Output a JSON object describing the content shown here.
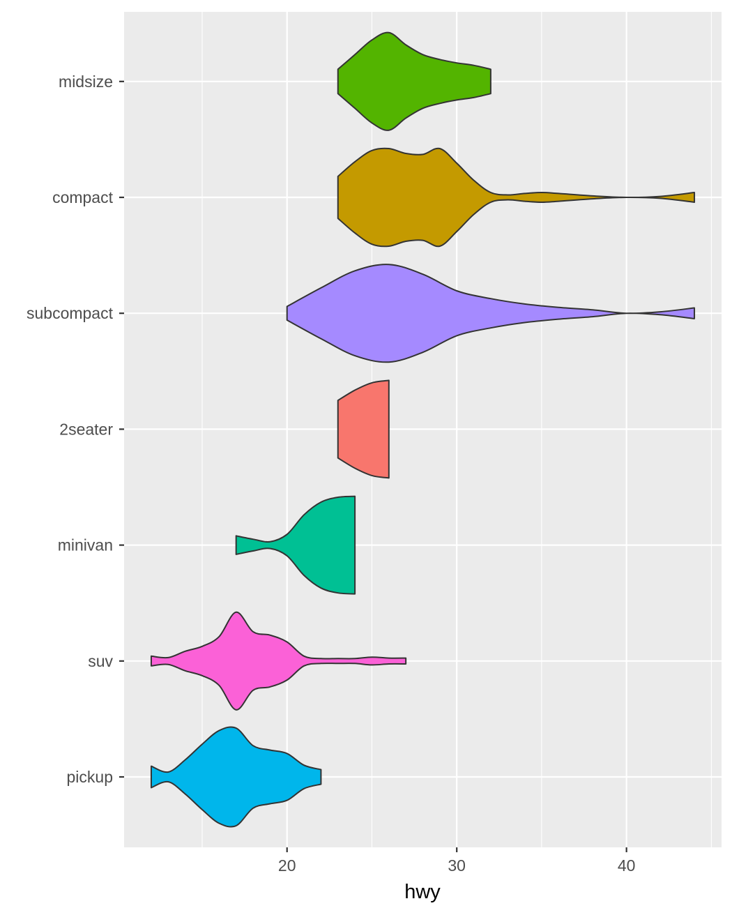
{
  "chart_data": {
    "type": "violin",
    "orientation": "horizontal",
    "title": "",
    "xlabel": "hwy",
    "ylabel": "",
    "xlim": [
      10.4,
      45.6
    ],
    "x_ticks": [
      20,
      30,
      40
    ],
    "x_minor_ticks": [
      15,
      25,
      35,
      45
    ],
    "grid": true,
    "legend": "none",
    "panel_background": "#ebebeb",
    "grid_color": "#ffffff",
    "outline_color": "#333333",
    "categories": [
      "pickup",
      "suv",
      "minivan",
      "2seater",
      "subcompact",
      "compact",
      "midsize"
    ],
    "series": [
      {
        "category": "pickup",
        "color": "#00b6eb",
        "profile": [
          [
            12,
            0.22
          ],
          [
            13,
            0.1
          ],
          [
            14,
            0.35
          ],
          [
            15,
            0.67
          ],
          [
            16,
            0.95
          ],
          [
            17,
            1.0
          ],
          [
            18,
            0.64
          ],
          [
            19,
            0.55
          ],
          [
            20,
            0.48
          ],
          [
            21,
            0.24
          ],
          [
            22,
            0.15
          ]
        ]
      },
      {
        "category": "suv",
        "color": "#fb61d7",
        "profile": [
          [
            12,
            0.1
          ],
          [
            13,
            0.07
          ],
          [
            14,
            0.2
          ],
          [
            15,
            0.3
          ],
          [
            16,
            0.5
          ],
          [
            17,
            1.0
          ],
          [
            18,
            0.6
          ],
          [
            19,
            0.53
          ],
          [
            20,
            0.39
          ],
          [
            21,
            0.1
          ],
          [
            22,
            0.05
          ],
          [
            23,
            0.05
          ],
          [
            24,
            0.05
          ],
          [
            25,
            0.08
          ],
          [
            26,
            0.06
          ],
          [
            27,
            0.06
          ]
        ]
      },
      {
        "category": "minivan",
        "color": "#00c094",
        "profile": [
          [
            17,
            0.19
          ],
          [
            18,
            0.12
          ],
          [
            19,
            0.07
          ],
          [
            20,
            0.22
          ],
          [
            21,
            0.62
          ],
          [
            22,
            0.88
          ],
          [
            23,
            0.98
          ],
          [
            24,
            1.0
          ]
        ]
      },
      {
        "category": "2seater",
        "color": "#f8766d",
        "profile": [
          [
            23,
            0.59
          ],
          [
            24,
            0.8
          ],
          [
            25,
            0.95
          ],
          [
            26,
            1.0
          ]
        ]
      },
      {
        "category": "subcompact",
        "color": "#a58aff",
        "profile": [
          [
            20,
            0.14
          ],
          [
            22,
            0.52
          ],
          [
            24,
            0.87
          ],
          [
            26,
            1.0
          ],
          [
            28,
            0.8
          ],
          [
            30,
            0.46
          ],
          [
            32,
            0.3
          ],
          [
            34,
            0.19
          ],
          [
            36,
            0.12
          ],
          [
            38,
            0.07
          ],
          [
            40,
            0.0
          ],
          [
            42,
            0.03
          ],
          [
            44,
            0.11
          ]
        ]
      },
      {
        "category": "compact",
        "color": "#c49a00",
        "profile": [
          [
            23,
            0.43
          ],
          [
            24,
            0.73
          ],
          [
            25,
            0.96
          ],
          [
            26,
            1.0
          ],
          [
            27,
            0.9
          ],
          [
            28,
            0.88
          ],
          [
            29,
            1.0
          ],
          [
            30,
            0.7
          ],
          [
            31,
            0.35
          ],
          [
            32,
            0.1
          ],
          [
            33,
            0.05
          ],
          [
            34,
            0.08
          ],
          [
            35,
            0.1
          ],
          [
            36,
            0.08
          ],
          [
            38,
            0.03
          ],
          [
            40,
            0.0
          ],
          [
            42,
            0.02
          ],
          [
            44,
            0.1
          ]
        ]
      },
      {
        "category": "midsize",
        "color": "#53b400",
        "profile": [
          [
            23,
            0.25
          ],
          [
            24,
            0.55
          ],
          [
            25,
            0.85
          ],
          [
            26,
            1.0
          ],
          [
            27,
            0.75
          ],
          [
            28,
            0.55
          ],
          [
            29,
            0.45
          ],
          [
            30,
            0.38
          ],
          [
            31,
            0.33
          ],
          [
            32,
            0.25
          ]
        ]
      }
    ]
  }
}
